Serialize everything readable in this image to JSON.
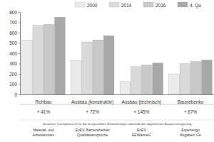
{
  "chart_data": {
    "type": "bar",
    "categories": [
      "Rohbau",
      "Ausbau (konstruktiv)",
      "Ausbau (technisch)",
      "Baunebenko"
    ],
    "series": [
      {
        "name": "2000",
        "color": "#ebebeb",
        "values": [
          530,
          330,
          125,
          200
        ]
      },
      {
        "name": "2014",
        "color": "#dadada",
        "values": [
          670,
          510,
          270,
          300
        ]
      },
      {
        "name": "2016",
        "color": "#c9c9c9",
        "values": [
          680,
          530,
          285,
          320
        ]
      },
      {
        "name": "4. Qu",
        "color": "#a8a8a8",
        "values": [
          750,
          570,
          305,
          335
        ]
      }
    ],
    "ylim": [
      0,
      800
    ],
    "yticks": [
      0,
      100,
      200,
      300,
      400,
      500,
      600,
      700,
      800
    ],
    "grid": false,
    "legend": "top",
    "annotations": {
      "changes": [
        "+ 41%",
        "+ 72%",
        "+ 145%",
        "+ 67%"
      ],
      "causes_title": "Ursachen (exemplarisch) für die festgestellten Entwicklungen oberhalb der allgemeinen Baupreissteigerung",
      "causes": [
        [
          "Material- und",
          "Arbeitskosten"
        ],
        [
          "EnEV, Barrierefreiheit",
          "Qualitätsansprüche"
        ],
        [
          "EnEV",
          "EEWärmeG"
        ],
        [
          "Expertengu",
          "Abgaben/ Ge"
        ]
      ]
    }
  }
}
